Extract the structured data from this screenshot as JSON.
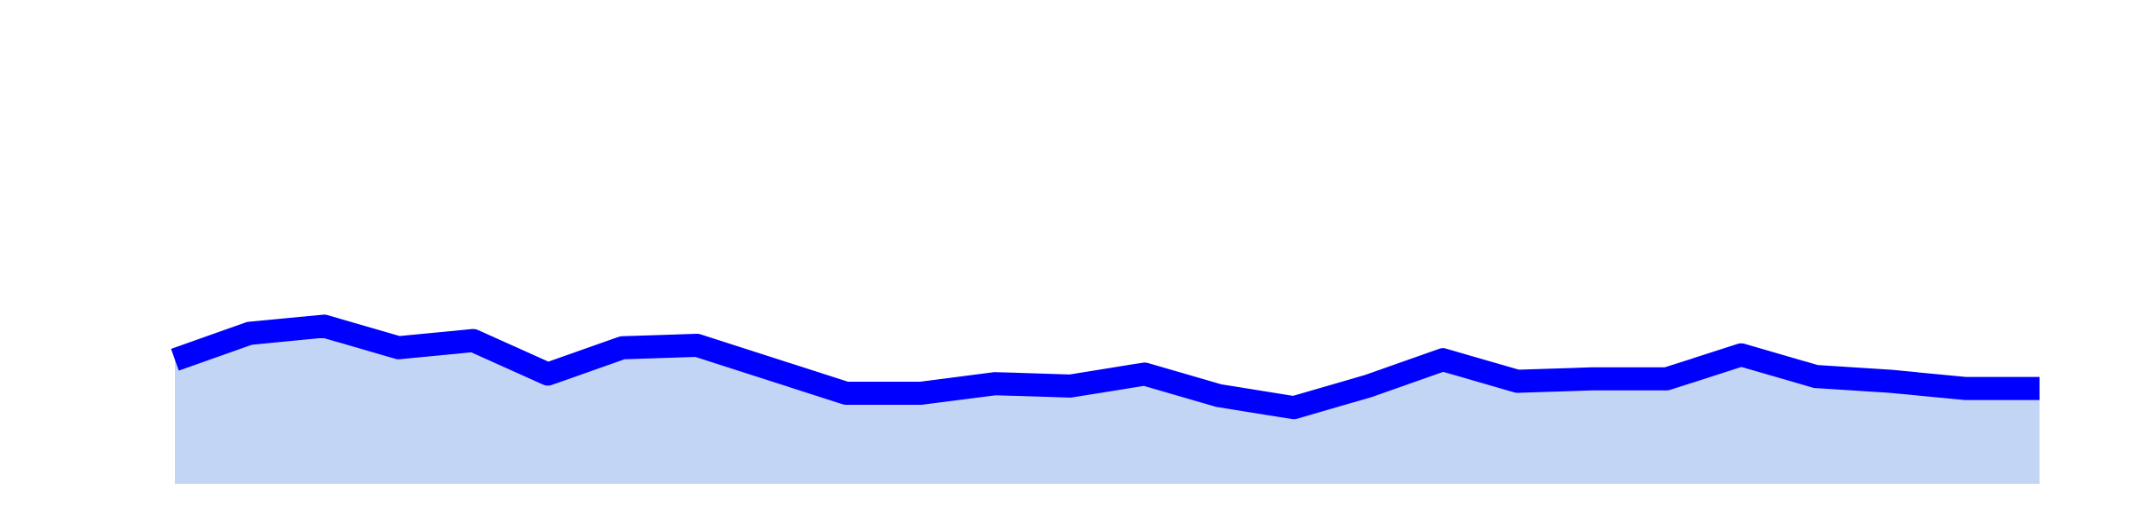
{
  "chart_data": {
    "type": "area",
    "title": "",
    "xlabel": "",
    "ylabel": "",
    "x": [
      0,
      1,
      2,
      3,
      4,
      5,
      6,
      7,
      8,
      9,
      10,
      11,
      12,
      13,
      14,
      15,
      16,
      17,
      18,
      19,
      20,
      21,
      22,
      23,
      24,
      25
    ],
    "series": [
      {
        "values": [
          24,
          35,
          38,
          29,
          32,
          18,
          29,
          30,
          20,
          10,
          10,
          14,
          13,
          18,
          9,
          4,
          13,
          24,
          15,
          16,
          16,
          26,
          17,
          15,
          12,
          0
        ],
        "line_color": "#0000ff",
        "fill_color": "#c3d5f5"
      }
    ],
    "last_value": 12,
    "ylim": [
      -16,
      150
    ],
    "xlim": [
      0,
      24
    ],
    "grid": false,
    "legend": "none"
  }
}
